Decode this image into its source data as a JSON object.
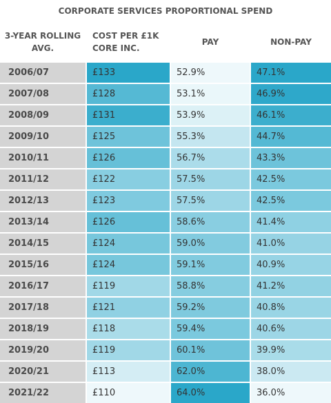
{
  "title": "CORPORATE SERVICES PROPORTIONAL SPEND",
  "headers": {
    "year": [
      "3-YEAR ROLLING",
      "AVG."
    ],
    "cost": [
      "COST PER £1K",
      "CORE INC."
    ],
    "pay": [
      "PAY"
    ],
    "nonpay": [
      "NON-PAY"
    ]
  },
  "chart_data": {
    "type": "table",
    "title": "CORPORATE SERVICES PROPORTIONAL SPEND",
    "columns": [
      "3-YEAR ROLLING AVG.",
      "COST PER £1K CORE INC.",
      "PAY",
      "NON-PAY"
    ],
    "rows": [
      {
        "year": "2006/07",
        "cost": "£133",
        "pay": "52.9%",
        "nonpay": "47.1%"
      },
      {
        "year": "2007/08",
        "cost": "£128",
        "pay": "53.1%",
        "nonpay": "46.9%"
      },
      {
        "year": "2008/09",
        "cost": "£131",
        "pay": "53.9%",
        "nonpay": "46.1%"
      },
      {
        "year": "2009/10",
        "cost": "£125",
        "pay": "55.3%",
        "nonpay": "44.7%"
      },
      {
        "year": "2010/11",
        "cost": "£126",
        "pay": "56.7%",
        "nonpay": "43.3%"
      },
      {
        "year": "2011/12",
        "cost": "£122",
        "pay": "57.5%",
        "nonpay": "42.5%"
      },
      {
        "year": "2012/13",
        "cost": "£123",
        "pay": "57.5%",
        "nonpay": "42.5%"
      },
      {
        "year": "2013/14",
        "cost": "£126",
        "pay": "58.6%",
        "nonpay": "41.4%"
      },
      {
        "year": "2014/15",
        "cost": "£124",
        "pay": "59.0%",
        "nonpay": "41.0%"
      },
      {
        "year": "2015/16",
        "cost": "£124",
        "pay": "59.1%",
        "nonpay": "40.9%"
      },
      {
        "year": "2016/17",
        "cost": "£119",
        "pay": "58.8%",
        "nonpay": "41.2%"
      },
      {
        "year": "2017/18",
        "cost": "£121",
        "pay": "59.2%",
        "nonpay": "40.8%"
      },
      {
        "year": "2018/19",
        "cost": "£118",
        "pay": "59.4%",
        "nonpay": "40.6%"
      },
      {
        "year": "2019/20",
        "cost": "£119",
        "pay": "60.1%",
        "nonpay": "39.9%"
      },
      {
        "year": "2020/21",
        "cost": "£113",
        "pay": "62.0%",
        "nonpay": "38.0%"
      },
      {
        "year": "2021/22",
        "cost": "£110",
        "pay": "64.0%",
        "nonpay": "36.0%"
      }
    ]
  },
  "colors": {
    "scale_low": "#ffffff",
    "scale_high": "#2aa7c9",
    "year_bg": "#d4d4d4"
  }
}
